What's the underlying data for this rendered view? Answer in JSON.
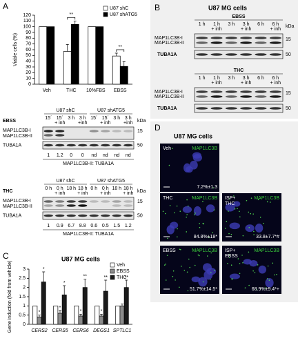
{
  "panel_labels": [
    "A",
    "B",
    "C",
    "D"
  ],
  "chart_data": [
    {
      "type": "bar",
      "ylabel": "Viable cells (%)",
      "categories": [
        "Veh",
        "THC",
        "10%FBS",
        "EBSS"
      ],
      "series": [
        {
          "name": "U87 shC",
          "color": "#ffffff",
          "values": [
            100,
            57,
            100,
            49
          ],
          "errors": [
            null,
            12,
            null,
            5
          ]
        },
        {
          "name": "U87 shATG5",
          "color": "#000000",
          "values": [
            100,
            104,
            100,
            31
          ],
          "errors": [
            null,
            6,
            null,
            8
          ]
        }
      ],
      "ylim": [
        0,
        120
      ],
      "yticks": [
        0,
        10,
        20,
        30,
        40,
        50,
        60,
        70,
        80,
        90,
        100,
        110,
        120
      ],
      "annotations": [
        {
          "text": "**",
          "category": "THC"
        },
        {
          "text": "**",
          "category": "EBSS"
        }
      ]
    },
    {
      "type": "bar",
      "title": "U87 MG cells",
      "ylabel": "Gene induction (fold from vehicle)",
      "categories": [
        "CERS2",
        "CERS5",
        "CERS6",
        "DEGS1",
        "SPTLC1"
      ],
      "series": [
        {
          "name": "Veh",
          "color": "#ffffff",
          "values": [
            1,
            1,
            1,
            1,
            1
          ],
          "errors": [
            null,
            null,
            null,
            null,
            null
          ],
          "significance": [
            null,
            null,
            null,
            null,
            null
          ]
        },
        {
          "name": "EBSS",
          "color": "#8c8c8c",
          "values": [
            0.4,
            0.6,
            0.45,
            0.45,
            1.0
          ],
          "errors": [
            0.1,
            0.15,
            0.1,
            0.1,
            0.1
          ],
          "significance": [
            "*",
            "*",
            "*",
            "*",
            null
          ]
        },
        {
          "name": "THC",
          "color": "#1a1a1a",
          "values": [
            2.3,
            1.6,
            2.0,
            1.8,
            2.0
          ],
          "errors": [
            0.55,
            0.5,
            0.45,
            0.6,
            0.4
          ],
          "significance": [
            "*",
            "*",
            "**",
            "**",
            "**"
          ]
        }
      ],
      "ylim": [
        0,
        3
      ],
      "yticks": [
        0,
        0.5,
        1,
        1.5,
        2,
        2.5,
        3
      ]
    }
  ],
  "blots_a": [
    {
      "condition": "EBSS",
      "groups": [
        "U87 shC",
        "U87 shATG5"
      ],
      "lanes": [
        [
          "15´"
        ],
        [
          "15´",
          "+ inh"
        ],
        [
          "3 h"
        ],
        [
          "3 h",
          "+inh"
        ],
        [
          "15´"
        ],
        [
          "15´",
          "+ inh"
        ],
        [
          "3 h"
        ],
        [
          "3 h",
          "+inh"
        ]
      ],
      "kda": "kDa",
      "markers": [
        "15",
        "50"
      ],
      "rows": [
        "MAP1LC3B-I",
        "MAP1LC3B-II",
        "TUBA1A"
      ],
      "quant": [
        "1",
        "1.2",
        "0",
        "0",
        "nd",
        "nd",
        "nd",
        "nd"
      ],
      "quant_label": "MAP1LC3B-II: TUBA1A"
    },
    {
      "condition": "THC",
      "groups": [
        "U87 shC",
        "U87 shATG5"
      ],
      "lanes": [
        [
          "0 h"
        ],
        [
          "0 h",
          "+ inh"
        ],
        [
          "18 h"
        ],
        [
          "18 h",
          "+ inh"
        ],
        [
          "0 h"
        ],
        [
          "0 h",
          "+ inh"
        ],
        [
          "18 h"
        ],
        [
          "18 h",
          "+ inh"
        ]
      ],
      "kda": "kDa",
      "markers": [
        "15",
        "50"
      ],
      "rows": [
        "MAP1LC3B-I",
        "MAP1LC3B-II",
        "TUBA1A"
      ],
      "quant": [
        "1",
        "0.9",
        "6.7",
        "8.8",
        "0.6",
        "0.5",
        "1.5",
        "1.2"
      ],
      "quant_label": "MAP1LC3B-II: TUBA1A"
    }
  ],
  "panel_b": {
    "title": "U87 MG cells",
    "kda": "kDa",
    "blocks": [
      {
        "condition": "EBSS",
        "lanes": [
          [
            "1 h"
          ],
          [
            "1 h",
            "+ inh"
          ],
          [
            "3 h"
          ],
          [
            "3 h",
            "+ inh"
          ],
          [
            "6 h"
          ],
          [
            "6 h",
            "+ inh"
          ]
        ],
        "rows": [
          "MAP1LC3B-I",
          "MAP1LC3B-II",
          "TUBA1A"
        ],
        "markers": [
          "15",
          "50"
        ]
      },
      {
        "condition": "THC",
        "lanes": [
          [
            "1 h"
          ],
          [
            "1 h",
            "+ inh"
          ],
          [
            "3 h"
          ],
          [
            "3 h",
            "+ inh"
          ],
          [
            "6 h"
          ],
          [
            "6 h",
            "+ inh"
          ]
        ],
        "rows": [
          "MAP1LC3B-I",
          "MAP1LC3B-II",
          "TUBA1A"
        ],
        "markers": [
          "15",
          "50"
        ]
      }
    ]
  },
  "panel_d": {
    "title": "U87 MG cells",
    "images": [
      {
        "label": [
          "Veh"
        ],
        "stain": "MAP1LC3B",
        "value": "7.2%±1.3"
      },
      {
        "label": [
          "THC"
        ],
        "stain": "MAP1LC3B",
        "value": "84.8%±18*"
      },
      {
        "label": [
          "ISP+",
          "THC"
        ],
        "stain": "MAP1LC3B",
        "value": "33.8±7.7*#"
      },
      {
        "label": [
          "EBSS"
        ],
        "stain": "MAP1LC3B",
        "value": "51.7%±14.5*"
      },
      {
        "label": [
          "ISP+",
          "EBSS"
        ],
        "stain": "MAP1LC3B",
        "value": "68.9%±9.4*+"
      }
    ]
  }
}
